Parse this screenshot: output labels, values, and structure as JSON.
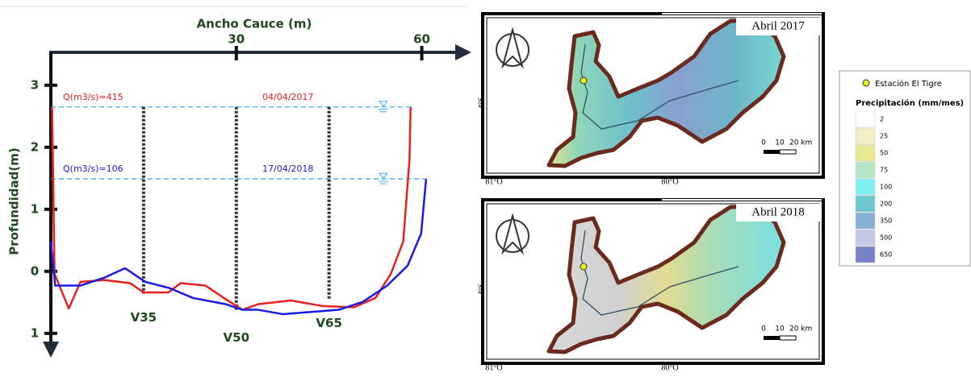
{
  "chart_data": {
    "type": "line",
    "xlabel": "Ancho Cauce (m)",
    "ylabel": "Profundidad(m)",
    "xlim": [
      0,
      67.5
    ],
    "ylim": [
      -1.34,
      3.53
    ],
    "xticks": [
      30,
      60
    ],
    "yticks": [
      3,
      2,
      1,
      0,
      {
        "value": -1,
        "label": "1"
      }
    ],
    "series": [
      {
        "color": "#e82020",
        "x": [
          0.2,
          0.6,
          2.9,
          4.8,
          8.7,
          12.8,
          15,
          19,
          21,
          25,
          28.3,
          31,
          33.5,
          38.8,
          44,
          49,
          52.5,
          55,
          57,
          58,
          58.2
        ],
        "values": [
          2.65,
          -0.04,
          -0.6,
          -0.17,
          -0.14,
          -0.19,
          -0.34,
          -0.34,
          -0.19,
          -0.23,
          -0.45,
          -0.62,
          -0.53,
          -0.47,
          -0.56,
          -0.58,
          -0.43,
          -0.04,
          0.48,
          1.78,
          2.65
        ]
      },
      {
        "color": "#1a1ae0",
        "x": [
          0,
          0.7,
          4.8,
          8.7,
          12,
          15.3,
          19.2,
          23,
          28.3,
          31,
          33.5,
          37.5,
          41.4,
          46.6,
          50.5,
          54.4,
          57.7,
          59.9,
          60.7
        ],
        "values": [
          0.48,
          -0.23,
          -0.23,
          -0.1,
          0.05,
          -0.17,
          -0.27,
          -0.43,
          -0.53,
          -0.62,
          -0.62,
          -0.69,
          -0.66,
          -0.62,
          -0.49,
          -0.23,
          0.09,
          0.61,
          1.49
        ]
      }
    ],
    "levels": [
      {
        "label": "Q(m3/s)=415",
        "date": "04/04/2017",
        "value": 2.65,
        "color": "#e82020"
      },
      {
        "label": "Q(m3/s)=106",
        "date": "17/04/2018",
        "value": 1.49,
        "color": "#1a1ae0"
      }
    ],
    "verticals": [
      {
        "label": "V35",
        "x": 15,
        "bottom": -0.36
      },
      {
        "label": "V50",
        "x": 30,
        "bottom": -0.62
      },
      {
        "label": "V65",
        "x": 45,
        "bottom": -0.45
      }
    ]
  },
  "maps": [
    {
      "title": "Abril 2017",
      "lat_label": "4°S",
      "lon_labels": [
        "81°O",
        "80°O"
      ],
      "scale_labels": [
        "0",
        "10",
        "20 km"
      ]
    },
    {
      "title": "Abril 2018",
      "lat_label": "4°S",
      "lon_labels": [
        "81°O",
        "80°O"
      ],
      "scale_labels": [
        "0",
        "10",
        "20 km"
      ]
    }
  ],
  "legend": {
    "station": "Estación El Tigre",
    "title": "Precipitación (mm/mes)",
    "classes": [
      {
        "label": 2,
        "color": "#ffffff"
      },
      {
        "label": 25,
        "color": "#f3efc4"
      },
      {
        "label": 50,
        "color": "#e6e892"
      },
      {
        "label": 75,
        "color": "#b6e6c8"
      },
      {
        "label": 100,
        "color": "#7ef0f0"
      },
      {
        "label": 200,
        "color": "#6cc6d0"
      },
      {
        "label": 350,
        "color": "#86b0d6"
      },
      {
        "label": 500,
        "color": "#c4c8e6"
      },
      {
        "label": 650,
        "color": "#7880c6"
      }
    ]
  }
}
